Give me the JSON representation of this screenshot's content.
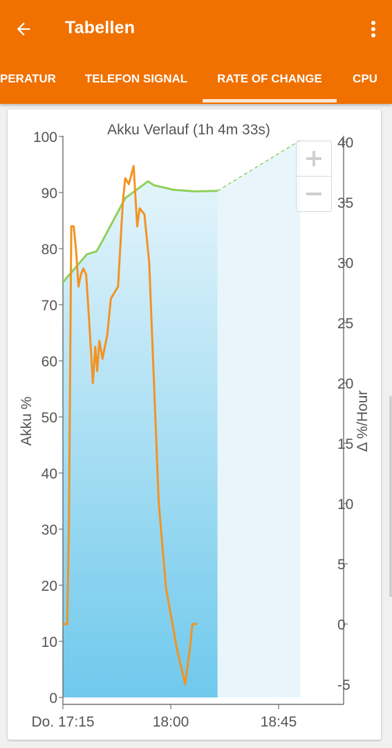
{
  "appbar": {
    "title": "Tabellen",
    "back_icon": "arrow-left-icon",
    "menu_icon": "more-vert-icon",
    "color": "#f07000"
  },
  "tabs": [
    {
      "label": "PERATUR",
      "active": false
    },
    {
      "label": "TELEFON SIGNAL",
      "active": false
    },
    {
      "label": "RATE OF CHANGE",
      "active": true
    },
    {
      "label": "CPU",
      "active": false
    }
  ],
  "zoom": {
    "in_icon": "plus-icon",
    "out_icon": "minus-icon"
  },
  "chart_data": {
    "type": "line",
    "title": "Akku Verlauf (1h 4m 33s)",
    "ylabel_left": "Akku %",
    "ylabel_right": "Δ %/Hour",
    "x_ticks": [
      "Do. 17:15",
      "18:00",
      "18:45"
    ],
    "x_tick_minutes": [
      0,
      45,
      90
    ],
    "xlim_minutes": [
      0,
      117
    ],
    "left_axis": {
      "min": 0,
      "max": 100,
      "ticks": [
        0,
        10,
        20,
        30,
        40,
        50,
        60,
        70,
        80,
        90,
        100
      ]
    },
    "right_axis": {
      "min": -7,
      "max": 40,
      "ticks": [
        -5,
        0,
        5,
        10,
        15,
        20,
        25,
        30,
        35,
        40
      ]
    },
    "grid": false,
    "colors": {
      "battery": "#8fd05a",
      "rate": "#f39322",
      "fill_top": "#e3f4fb",
      "fill_bottom": "#6fc9ec",
      "projection_fill": "#e8f6fc"
    },
    "series": [
      {
        "axis": "left",
        "style": "solid",
        "points": [
          [
            0,
            74
          ],
          [
            4,
            76
          ],
          [
            10,
            79
          ],
          [
            14,
            79.5
          ],
          [
            16,
            81
          ],
          [
            26,
            89
          ],
          [
            35.5,
            92
          ],
          [
            38,
            91.3
          ],
          [
            46,
            90.5
          ],
          [
            55,
            90.2
          ],
          [
            64.5,
            90.3
          ]
        ]
      },
      {
        "axis": "left",
        "style": "dashed",
        "points": [
          [
            64.5,
            90.3
          ],
          [
            99,
            99.3
          ]
        ]
      },
      {
        "axis": "right",
        "style": "solid",
        "points": [
          [
            0,
            0
          ],
          [
            1.8,
            0
          ],
          [
            2.5,
            8
          ],
          [
            3.5,
            33
          ],
          [
            4.5,
            33
          ],
          [
            5.5,
            31
          ],
          [
            6.5,
            28
          ],
          [
            7.5,
            29
          ],
          [
            8.5,
            29.5
          ],
          [
            9.7,
            29
          ],
          [
            11,
            25
          ],
          [
            12.5,
            20
          ],
          [
            13.5,
            23
          ],
          [
            14.3,
            21
          ],
          [
            15.2,
            23.5
          ],
          [
            16.5,
            22
          ],
          [
            18.5,
            24
          ],
          [
            20,
            27
          ],
          [
            23,
            28
          ],
          [
            25,
            35
          ],
          [
            26,
            37
          ],
          [
            27.5,
            36.5
          ],
          [
            29.5,
            38
          ],
          [
            31,
            33
          ],
          [
            32,
            34.5
          ],
          [
            34,
            34
          ],
          [
            36,
            30
          ],
          [
            38,
            20
          ],
          [
            40,
            10
          ],
          [
            43,
            3
          ],
          [
            47.5,
            -2
          ],
          [
            51,
            -5
          ],
          [
            53,
            -2
          ],
          [
            54,
            0
          ],
          [
            56,
            0
          ]
        ]
      }
    ]
  }
}
